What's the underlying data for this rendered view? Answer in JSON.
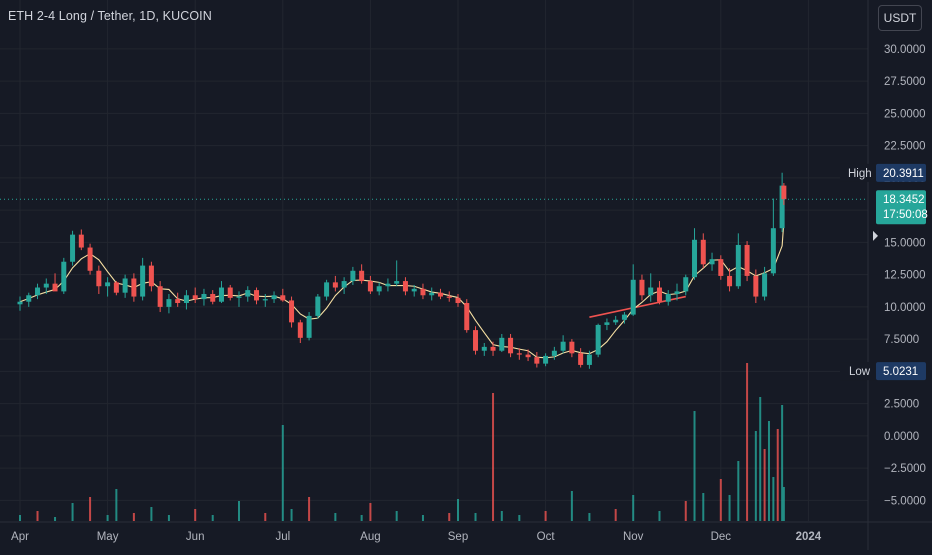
{
  "header": {
    "title": "ETH 2-4 Long / Tether, 1D, KUCOIN",
    "currency_button": "USDT"
  },
  "colors": {
    "background": "#161a25",
    "grid": "#22262f",
    "up": "#26a69a",
    "down": "#ef5350",
    "ma_short": "#f7e0a3",
    "ma_long": "#f05350",
    "last_price_bg": "#26a69a",
    "label_bg": "#1e3a64",
    "axis_text": "#b2b5be"
  },
  "chart_data": {
    "type": "candlestick",
    "title": "ETH 2-4 Long / Tether, 1D, KUCOIN",
    "x_tick_labels": [
      "Apr",
      "May",
      "Jun",
      "Jul",
      "Aug",
      "Sep",
      "Oct",
      "Nov",
      "Dec",
      "2024"
    ],
    "y_tick_labels": [
      "30.0000",
      "27.5000",
      "25.0000",
      "22.5000",
      "20.0000",
      "17.5000",
      "15.0000",
      "12.5000",
      "10.0000",
      "7.5000",
      "5.0000",
      "2.5000",
      "0.0000",
      "−2.5000",
      "−5.0000"
    ],
    "y_ticks": [
      30,
      27.5,
      25,
      22.5,
      20,
      17.5,
      15,
      12.5,
      10,
      7.5,
      5,
      2.5,
      0,
      -2.5,
      -5
    ],
    "ylim": [
      -6.6,
      31
    ],
    "high": {
      "label": "High",
      "value": "20.3911"
    },
    "low": {
      "label": "Low",
      "value": "5.0231"
    },
    "last_price": {
      "value": "18.3452",
      "countdown": "17:50:08",
      "numeric": 18.3452
    },
    "trendline": [
      [
        9.5,
        9.2
      ],
      [
        10.6,
        10.8
      ]
    ],
    "ohlc": [
      [
        3.0,
        10.2,
        10.8,
        9.7,
        10.4
      ],
      [
        3.1,
        10.4,
        11.1,
        10.0,
        10.9
      ],
      [
        3.2,
        10.9,
        11.8,
        10.6,
        11.5
      ],
      [
        3.3,
        11.5,
        12.2,
        11.0,
        11.8
      ],
      [
        3.4,
        11.8,
        12.6,
        11.3,
        11.2
      ],
      [
        3.5,
        11.2,
        13.8,
        11.0,
        13.5
      ],
      [
        3.6,
        13.5,
        15.9,
        13.2,
        15.6
      ],
      [
        3.7,
        15.6,
        16.0,
        14.4,
        14.6
      ],
      [
        3.8,
        14.6,
        14.9,
        12.5,
        12.8
      ],
      [
        3.9,
        12.8,
        13.2,
        11.0,
        11.6
      ],
      [
        4.0,
        11.6,
        12.3,
        10.8,
        11.9
      ],
      [
        4.1,
        11.9,
        12.0,
        10.9,
        11.1
      ],
      [
        4.2,
        11.1,
        12.5,
        10.7,
        12.2
      ],
      [
        4.3,
        12.2,
        12.6,
        10.4,
        10.8
      ],
      [
        4.4,
        10.8,
        13.8,
        10.5,
        13.2
      ],
      [
        4.5,
        13.2,
        13.5,
        11.2,
        11.6
      ],
      [
        4.6,
        11.6,
        12.0,
        9.6,
        10.0
      ],
      [
        4.7,
        10.0,
        11.0,
        9.5,
        10.6
      ],
      [
        4.8,
        10.6,
        11.1,
        10.0,
        10.3
      ],
      [
        4.9,
        10.3,
        11.3,
        9.8,
        10.9
      ],
      [
        5.0,
        10.9,
        11.5,
        10.3,
        10.6
      ],
      [
        5.1,
        10.6,
        11.4,
        10.1,
        11.0
      ],
      [
        5.2,
        11.0,
        11.3,
        10.2,
        10.4
      ],
      [
        5.3,
        10.4,
        12.0,
        10.3,
        11.5
      ],
      [
        5.4,
        11.5,
        11.7,
        10.5,
        10.7
      ],
      [
        5.5,
        10.7,
        11.2,
        10.0,
        10.8
      ],
      [
        5.6,
        10.8,
        11.6,
        10.4,
        11.3
      ],
      [
        5.7,
        11.3,
        11.5,
        10.2,
        10.5
      ],
      [
        5.8,
        10.5,
        11.0,
        10.0,
        10.6
      ],
      [
        5.9,
        10.6,
        11.2,
        10.3,
        10.9
      ],
      [
        6.0,
        10.9,
        11.4,
        10.4,
        10.5
      ],
      [
        6.1,
        10.5,
        10.8,
        8.4,
        8.8
      ],
      [
        6.2,
        8.8,
        9.0,
        7.2,
        7.6
      ],
      [
        6.3,
        7.6,
        9.6,
        7.4,
        9.3
      ],
      [
        6.4,
        9.3,
        11.0,
        9.1,
        10.8
      ],
      [
        6.5,
        10.8,
        12.1,
        10.5,
        11.9
      ],
      [
        6.6,
        11.9,
        12.4,
        11.2,
        11.5
      ],
      [
        6.7,
        11.5,
        12.3,
        11.0,
        12.0
      ],
      [
        6.8,
        12.0,
        13.1,
        11.7,
        12.8
      ],
      [
        6.9,
        12.8,
        13.3,
        11.8,
        12.0
      ],
      [
        7.0,
        12.0,
        12.4,
        11.0,
        11.2
      ],
      [
        7.1,
        11.2,
        11.9,
        10.9,
        11.6
      ],
      [
        7.2,
        11.6,
        12.2,
        11.2,
        11.8
      ],
      [
        7.3,
        11.8,
        13.6,
        11.6,
        12.0
      ],
      [
        7.4,
        12.0,
        12.3,
        10.9,
        11.2
      ],
      [
        7.5,
        11.2,
        11.7,
        10.8,
        11.4
      ],
      [
        7.6,
        11.4,
        11.8,
        10.6,
        10.9
      ],
      [
        7.7,
        10.9,
        11.5,
        10.5,
        11.1
      ],
      [
        7.8,
        11.1,
        11.4,
        10.6,
        10.8
      ],
      [
        7.9,
        10.8,
        11.2,
        10.4,
        10.7
      ],
      [
        8.0,
        10.7,
        11.0,
        10.0,
        10.3
      ],
      [
        8.1,
        10.3,
        10.6,
        8.0,
        8.2
      ],
      [
        8.2,
        8.2,
        8.5,
        6.3,
        6.6
      ],
      [
        8.3,
        6.6,
        7.2,
        6.2,
        6.9
      ],
      [
        8.4,
        6.9,
        7.3,
        6.2,
        6.6
      ],
      [
        8.5,
        6.6,
        7.9,
        6.5,
        7.6
      ],
      [
        8.6,
        7.6,
        7.9,
        6.1,
        6.4
      ],
      [
        8.7,
        6.4,
        6.8,
        5.9,
        6.3
      ],
      [
        8.8,
        6.3,
        6.7,
        5.8,
        6.1
      ],
      [
        8.9,
        6.1,
        6.5,
        5.3,
        5.6
      ],
      [
        9.0,
        5.6,
        6.4,
        5.4,
        6.2
      ],
      [
        9.1,
        6.2,
        6.9,
        5.9,
        6.6
      ],
      [
        9.2,
        6.6,
        7.8,
        6.4,
        7.3
      ],
      [
        9.3,
        7.3,
        7.5,
        6.1,
        6.4
      ],
      [
        9.4,
        6.4,
        6.8,
        5.3,
        5.5
      ],
      [
        9.5,
        5.5,
        6.6,
        5.2,
        6.3
      ],
      [
        9.6,
        6.3,
        8.7,
        6.1,
        8.6
      ],
      [
        9.7,
        8.6,
        9.1,
        8.2,
        8.8
      ],
      [
        9.8,
        8.8,
        9.3,
        8.6,
        9.0
      ],
      [
        9.9,
        9.0,
        9.6,
        8.7,
        9.4
      ],
      [
        10.0,
        9.4,
        13.3,
        9.3,
        12.1
      ],
      [
        10.1,
        12.1,
        12.5,
        10.5,
        10.9
      ],
      [
        10.2,
        10.9,
        12.6,
        10.4,
        11.5
      ],
      [
        10.3,
        11.5,
        12.0,
        10.2,
        10.4
      ],
      [
        10.4,
        10.4,
        11.3,
        10.1,
        11.0
      ],
      [
        10.5,
        11.0,
        11.8,
        10.5,
        11.2
      ],
      [
        10.6,
        11.2,
        12.5,
        10.9,
        12.3
      ],
      [
        10.7,
        12.3,
        16.1,
        12.1,
        15.2
      ],
      [
        10.8,
        15.2,
        15.7,
        13.0,
        13.3
      ],
      [
        10.9,
        13.3,
        14.2,
        12.8,
        13.7
      ],
      [
        11.0,
        13.7,
        14.0,
        12.1,
        12.4
      ],
      [
        11.1,
        12.4,
        13.0,
        11.2,
        11.6
      ],
      [
        11.2,
        11.6,
        15.7,
        11.4,
        14.8
      ],
      [
        11.3,
        14.8,
        15.1,
        12.0,
        12.4
      ],
      [
        11.4,
        12.4,
        12.9,
        10.3,
        10.8
      ],
      [
        11.5,
        10.8,
        13.1,
        10.5,
        12.6
      ],
      [
        11.6,
        12.6,
        18.4,
        12.4,
        16.1
      ],
      [
        11.7,
        16.1,
        20.4,
        15.8,
        19.4
      ],
      [
        11.72,
        19.4,
        19.6,
        17.9,
        18.35
      ]
    ],
    "volume": [
      [
        3.0,
        0.3
      ],
      [
        3.2,
        0.5
      ],
      [
        3.4,
        0.2
      ],
      [
        3.6,
        0.9
      ],
      [
        3.8,
        1.2
      ],
      [
        4.0,
        0.3
      ],
      [
        4.1,
        1.6
      ],
      [
        4.3,
        0.4
      ],
      [
        4.5,
        0.7
      ],
      [
        4.7,
        0.3
      ],
      [
        5.0,
        0.6
      ],
      [
        5.2,
        0.3
      ],
      [
        5.5,
        1.0
      ],
      [
        5.8,
        0.4
      ],
      [
        6.0,
        4.8
      ],
      [
        6.1,
        0.6
      ],
      [
        6.3,
        1.2
      ],
      [
        6.6,
        0.4
      ],
      [
        6.9,
        0.3
      ],
      [
        7.0,
        0.9
      ],
      [
        7.3,
        0.5
      ],
      [
        7.6,
        0.3
      ],
      [
        7.9,
        0.4
      ],
      [
        8.0,
        1.1
      ],
      [
        8.2,
        0.4
      ],
      [
        8.4,
        6.4
      ],
      [
        8.5,
        0.5
      ],
      [
        8.7,
        0.3
      ],
      [
        9.0,
        0.5
      ],
      [
        9.3,
        1.5
      ],
      [
        9.5,
        0.4
      ],
      [
        9.8,
        0.6
      ],
      [
        10.0,
        1.3
      ],
      [
        10.3,
        0.5
      ],
      [
        10.6,
        1.0
      ],
      [
        10.7,
        5.5
      ],
      [
        10.8,
        1.4
      ],
      [
        11.0,
        2.1
      ],
      [
        11.1,
        1.3
      ],
      [
        11.2,
        3.0
      ],
      [
        11.3,
        7.9
      ],
      [
        11.4,
        4.5
      ],
      [
        11.45,
        6.2
      ],
      [
        11.5,
        3.6
      ],
      [
        11.55,
        5.0
      ],
      [
        11.6,
        2.2
      ],
      [
        11.65,
        4.6
      ],
      [
        11.7,
        5.8
      ],
      [
        11.72,
        1.7
      ]
    ]
  }
}
